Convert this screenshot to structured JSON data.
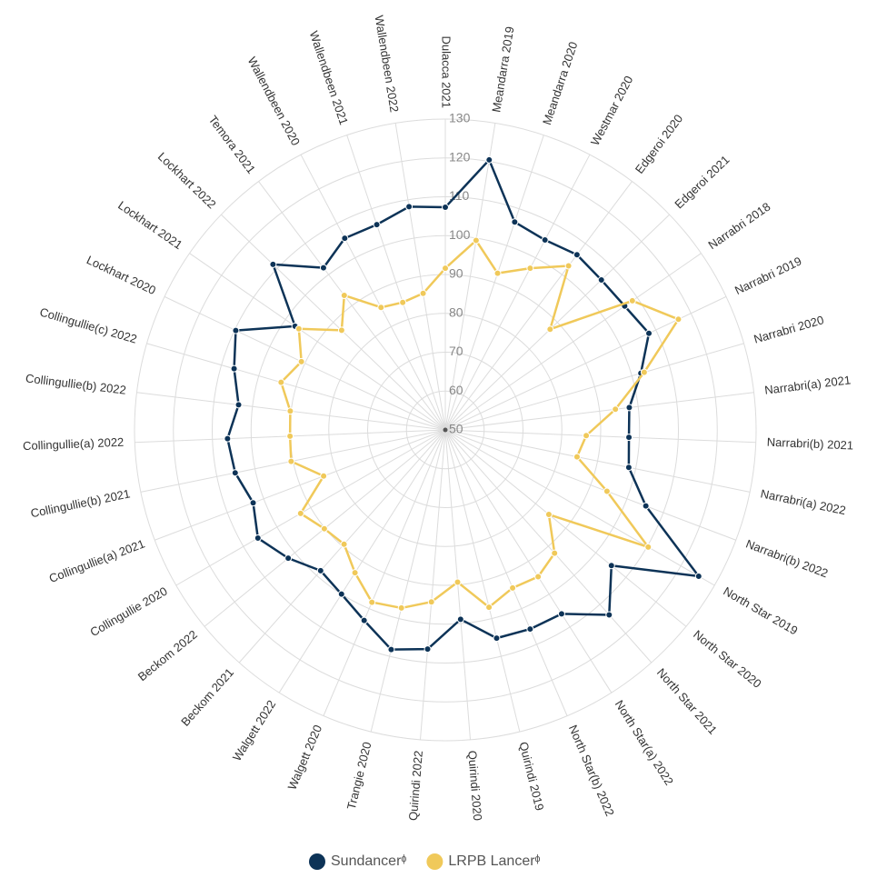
{
  "chart_data": {
    "type": "radar",
    "categories": [
      "Dulacca 2021",
      "Meandarra 2019",
      "Meandarra 2020",
      "Westmar 2020",
      "Edgeroi 2020",
      "Edgeroi 2021",
      "Narrabri 2018",
      "Narrabri 2019",
      "Narrabri 2020",
      "Narrabri(a) 2021",
      "Narrabri(b) 2021",
      "Narrabri(a) 2022",
      "Narrabri(b) 2022",
      "North Star 2019",
      "North Star 2020",
      "North Star 2021",
      "North Star(a) 2022",
      "North Star(b) 2022",
      "Quirindi 2019",
      "Quirindi 2020",
      "Quirindi 2022",
      "Trangie 2020",
      "Walgett 2020",
      "Walgett 2022",
      "Beckom 2021",
      "Beckom 2022",
      "Collingullie 2020",
      "Collingullie(a) 2021",
      "Collingullie(b) 2021",
      "Collingullie(a) 2022",
      "Collingullie(b) 2022",
      "Collingullie(c) 2022",
      "Lockhart 2020",
      "Lockhart 2021",
      "Lockhart 2022",
      "Temora 2021",
      "Wallendbeen 2020",
      "Wallendbeen 2021",
      "Wallendbeen 2022"
    ],
    "series": [
      {
        "name": "Sundancerᶲ",
        "color": "#0d3357",
        "values": [
          107.3,
          120.4,
          106.4,
          105.2,
          106.4,
          105.7,
          106.1,
          108,
          102.4,
          97.7,
          97.3,
          98.2,
          105.2,
          125.3,
          105.2,
          113.6,
          106,
          105.7,
          105.2,
          98.9,
          106.6,
          108.2,
          103.3,
          100,
          98.4,
          102.2,
          105.7,
          102.9,
          105.2,
          106.1,
          103.6,
          106.6,
          109.7,
          97,
          111.5,
          102.2,
          105.7,
          105.7,
          108.2
        ]
      },
      {
        "name": "LRPB Lancerᶲ",
        "color": "#f0c95a",
        "values": [
          91.6,
          99.4,
          92.5,
          97,
          102.8,
          87.4,
          108.5,
          116.4,
          103.3,
          94.1,
          86.3,
          84.6,
          94.5,
          110.3,
          84.4,
          92.4,
          94.7,
          94.2,
          97,
          89.3,
          94.4,
          97.2,
          98.2,
          93.5,
          89.3,
          90.2,
          93,
          83.5,
          90.5,
          90,
          90.2,
          94,
          91,
          95.8,
          87,
          93.3,
          85.6,
          84.6,
          85.6
        ]
      }
    ],
    "ylim": [
      50,
      130
    ],
    "yticks": [
      50,
      60,
      70,
      80,
      90,
      100,
      110,
      120,
      130
    ],
    "grid": true,
    "legend": "bottom"
  }
}
